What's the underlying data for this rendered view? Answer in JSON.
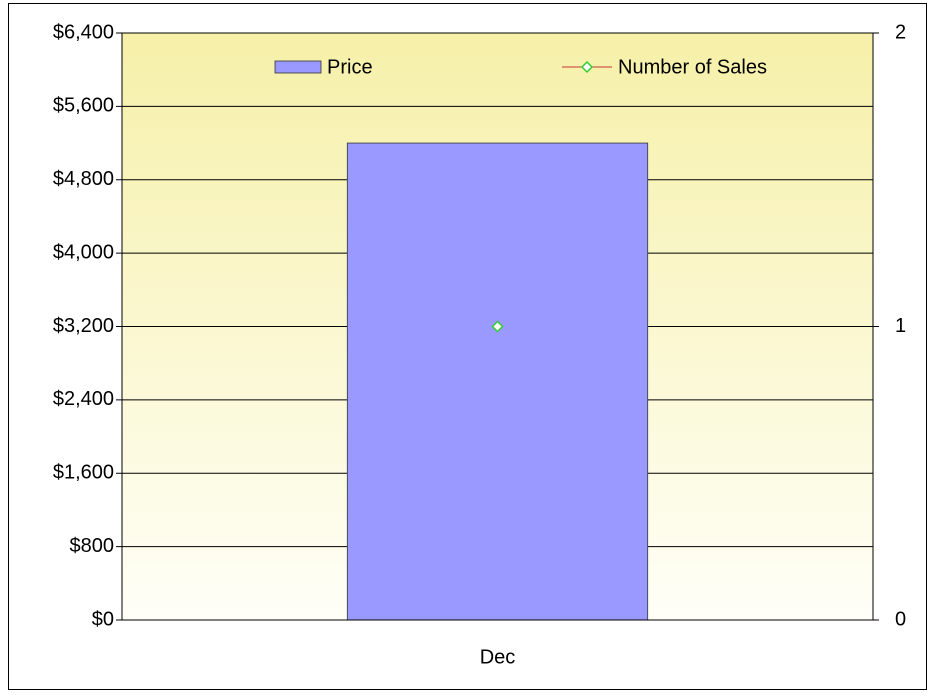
{
  "chart_data": {
    "type": "bar",
    "categories": [
      "Dec"
    ],
    "series": [
      {
        "name": "Price",
        "type": "bar",
        "color": "#9999ff",
        "values": [
          5200
        ]
      },
      {
        "name": "Number of Sales",
        "type": "line",
        "color": "#33cc33",
        "axis": "y2",
        "values": [
          1
        ]
      }
    ],
    "ylim": [
      0,
      6400
    ],
    "yticks": [
      {
        "value": 0,
        "label": "$0"
      },
      {
        "value": 800,
        "label": "$800"
      },
      {
        "value": 1600,
        "label": "$1,600"
      },
      {
        "value": 2400,
        "label": "$2,400"
      },
      {
        "value": 3200,
        "label": "$3,200"
      },
      {
        "value": 4000,
        "label": "$4,000"
      },
      {
        "value": 4800,
        "label": "$4,800"
      },
      {
        "value": 5600,
        "label": "$5,600"
      },
      {
        "value": 6400,
        "label": "$6,400"
      }
    ],
    "y2lim": [
      0,
      2
    ],
    "y2ticks": [
      0,
      1,
      2
    ],
    "grid": true,
    "legend": "top"
  }
}
